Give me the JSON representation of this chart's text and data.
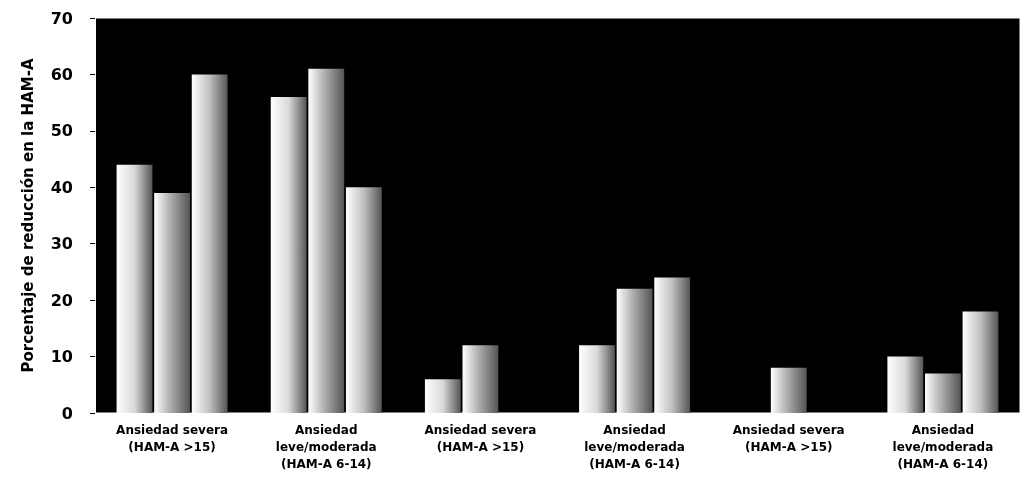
{
  "chart_data": {
    "type": "bar",
    "ylabel": "Porcentaje de reducción en la HAM-A",
    "categories": [
      "Ansiedad severa\n(HAM-A >15)",
      "Ansiedad\nleve/moderada\n(HAM-A 6-14)",
      "Ansiedad severa\n(HAM-A >15)",
      "Ansiedad\nleve/moderada\n(HAM-A 6-14)",
      "Ansiedad severa\n(HAM-A >15)",
      "Ansiedad\nleve/moderada\n(HAM-A 6-14)"
    ],
    "series": [
      {
        "color": "#d9d9d9",
        "values": [
          44,
          56,
          6,
          12,
          null,
          10
        ]
      },
      {
        "color": "#a6a6a6",
        "values": [
          39,
          61,
          12,
          22,
          8,
          7
        ]
      },
      {
        "color": "#bfbfbf",
        "values": [
          60,
          40,
          null,
          24,
          null,
          18
        ]
      }
    ],
    "ylim": [
      0,
      70
    ],
    "yticks": [
      0,
      10,
      20,
      30,
      40,
      50,
      60,
      70
    ],
    "grid": false
  }
}
